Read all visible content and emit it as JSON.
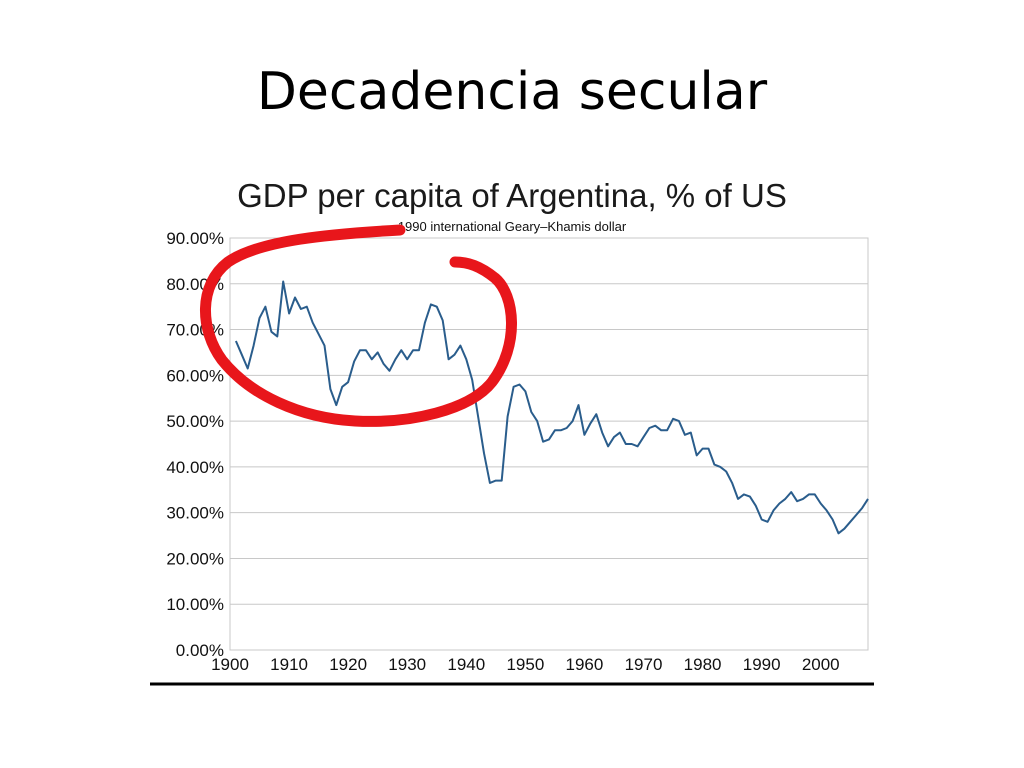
{
  "slide": {
    "title": "Decadencia secular"
  },
  "colors": {
    "series": "#2a5d8c",
    "annotation": "#e8161b",
    "grid": "#c8c8c8"
  },
  "chart_data": {
    "type": "line",
    "title": "GDP per capita of Argentina, % of US",
    "subtitle": "1990 international Geary–Khamis dollar",
    "xlabel": "",
    "ylabel": "",
    "xlim": [
      1900,
      2008
    ],
    "ylim": [
      0,
      90
    ],
    "x_ticks": [
      1900,
      1910,
      1920,
      1930,
      1940,
      1950,
      1960,
      1970,
      1980,
      1990,
      2000
    ],
    "y_ticks": [
      0,
      10,
      20,
      30,
      40,
      50,
      60,
      70,
      80,
      90
    ],
    "y_tick_labels": [
      "0.00%",
      "10.00%",
      "20.00%",
      "30.00%",
      "40.00%",
      "50.00%",
      "60.00%",
      "70.00%",
      "80.00%",
      "90.00%"
    ],
    "grid": "horizontal",
    "legend": "none",
    "series": [
      {
        "x": [
          1901,
          1902,
          1903,
          1904,
          1905,
          1906,
          1907,
          1908,
          1909,
          1910,
          1911,
          1912,
          1913,
          1914,
          1915,
          1916,
          1917,
          1918,
          1919,
          1920,
          1921,
          1922,
          1923,
          1924,
          1925,
          1926,
          1927,
          1928,
          1929,
          1930,
          1931,
          1932,
          1933,
          1934,
          1935,
          1936,
          1937,
          1938,
          1939,
          1940,
          1941,
          1942,
          1943,
          1944,
          1945,
          1946,
          1947,
          1948,
          1949,
          1950,
          1951,
          1952,
          1953,
          1954,
          1955,
          1956,
          1957,
          1958,
          1959,
          1960,
          1961,
          1962,
          1963,
          1964,
          1965,
          1966,
          1967,
          1968,
          1969,
          1970,
          1971,
          1972,
          1973,
          1974,
          1975,
          1976,
          1977,
          1978,
          1979,
          1980,
          1981,
          1982,
          1983,
          1984,
          1985,
          1986,
          1987,
          1988,
          1989,
          1990,
          1991,
          1992,
          1993,
          1994,
          1995,
          1996,
          1997,
          1998,
          1999,
          2000,
          2001,
          2002,
          2003,
          2004,
          2005,
          2006,
          2007,
          2008
        ],
        "values": [
          67.5,
          64.5,
          61.5,
          66.5,
          72.5,
          75,
          69.5,
          68.5,
          80.5,
          73.5,
          77,
          74.5,
          75,
          71.5,
          69,
          66.5,
          57,
          53.5,
          57.5,
          58.5,
          63,
          65.5,
          65.5,
          63.5,
          65,
          62.5,
          61,
          63.5,
          65.5,
          63.5,
          65.5,
          65.5,
          71.5,
          75.5,
          75,
          72,
          63.5,
          64.5,
          66.5,
          63.5,
          59,
          51,
          43,
          36.5,
          37,
          37,
          51,
          57.5,
          58,
          56.5,
          52,
          50,
          45.5,
          46,
          48,
          48,
          48.5,
          50,
          53.5,
          47,
          49.5,
          51.5,
          47.5,
          44.5,
          46.5,
          47.5,
          45,
          45,
          44.5,
          46.5,
          48.5,
          49,
          48,
          48,
          50.5,
          50,
          47,
          47.5,
          42.5,
          44,
          44,
          40.5,
          40,
          39,
          36.5,
          33,
          34,
          33.5,
          31.5,
          28.5,
          28,
          30.5,
          32,
          33,
          34.5,
          32.5,
          33,
          34,
          34,
          32,
          30.5,
          28.5,
          25.5,
          26.5,
          28,
          29.5,
          31,
          33
        ]
      }
    ]
  }
}
